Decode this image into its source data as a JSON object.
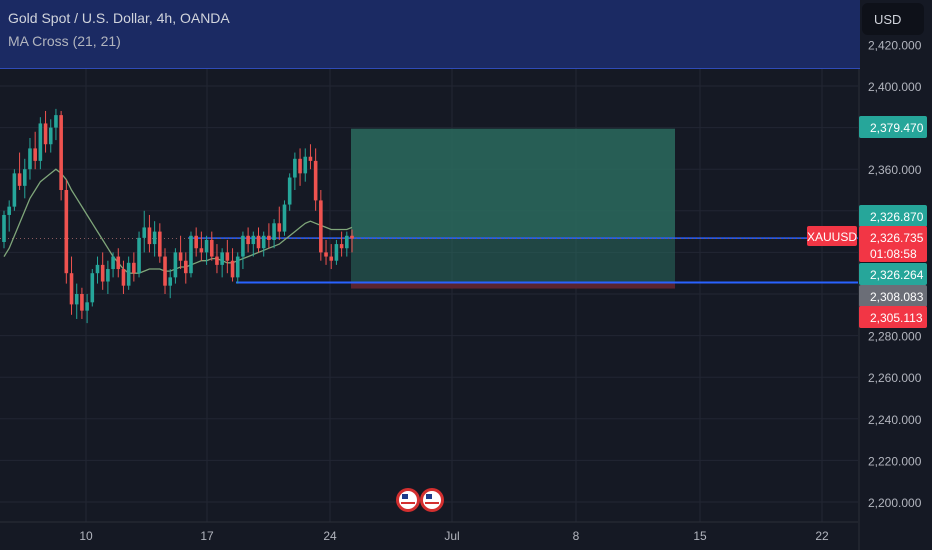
{
  "header": {
    "title": "Gold Spot / U.S. Dollar, 4h, OANDA",
    "indicator": "MA Cross (21, 21)",
    "currency": "USD"
  },
  "colors": {
    "background": "#151924",
    "up": "#26a69a",
    "down": "#ef5350",
    "profit_zone": "#2a6b5e",
    "loss_zone": "#5b2430",
    "level_line": "#2962ff",
    "ma_line": "#7fa67a"
  },
  "chart_data": {
    "type": "candlestick",
    "symbol": "XAUUSD",
    "ylim": [
      2190,
      2430
    ],
    "y_ticks": [
      "2,200.000",
      "2,220.000",
      "2,240.000",
      "2,260.000",
      "2,280.000",
      "2,300.000",
      "2,320.000",
      "2,340.000",
      "2,360.000",
      "2,380.000",
      "2,400.000",
      "2,420.000"
    ],
    "x_ticks": [
      "10",
      "17",
      "24",
      "Jul",
      "8",
      "15",
      "22"
    ],
    "price_labels": [
      {
        "value": "2,379.470",
        "kind": "target"
      },
      {
        "value": "2,326.870",
        "kind": "entry"
      },
      {
        "value": "2,326.735",
        "kind": "current",
        "symbol": "XAUUSD",
        "countdown": "01:08:58"
      },
      {
        "value": "2,326.264",
        "kind": "level"
      },
      {
        "value": "2,308.083",
        "kind": "stop_pending"
      },
      {
        "value": "2,305.113",
        "kind": "stop"
      }
    ],
    "position": {
      "entry": 2326.87,
      "target": 2379.47,
      "stop": 2305.113
    },
    "levels": [
      2326.87,
      2305.5
    ],
    "events": [
      "us-flag-event",
      "us-flag-event"
    ],
    "candles": [
      [
        2325,
        2340,
        2322,
        2338
      ],
      [
        2338,
        2345,
        2330,
        2342
      ],
      [
        2342,
        2360,
        2340,
        2358
      ],
      [
        2358,
        2368,
        2350,
        2352
      ],
      [
        2352,
        2365,
        2346,
        2360
      ],
      [
        2360,
        2375,
        2355,
        2370
      ],
      [
        2370,
        2378,
        2360,
        2364
      ],
      [
        2364,
        2385,
        2360,
        2382
      ],
      [
        2382,
        2388,
        2368,
        2372
      ],
      [
        2372,
        2384,
        2368,
        2380
      ],
      [
        2380,
        2389,
        2374,
        2386
      ],
      [
        2386,
        2388,
        2345,
        2350
      ],
      [
        2350,
        2355,
        2305,
        2310
      ],
      [
        2310,
        2318,
        2290,
        2295
      ],
      [
        2295,
        2305,
        2288,
        2300
      ],
      [
        2300,
        2303,
        2288,
        2292
      ],
      [
        2292,
        2300,
        2286,
        2296
      ],
      [
        2296,
        2312,
        2294,
        2310
      ],
      [
        2310,
        2318,
        2305,
        2314
      ],
      [
        2314,
        2320,
        2302,
        2306
      ],
      [
        2306,
        2316,
        2300,
        2312
      ],
      [
        2312,
        2320,
        2308,
        2318
      ],
      [
        2318,
        2322,
        2308,
        2312
      ],
      [
        2312,
        2316,
        2300,
        2304
      ],
      [
        2304,
        2318,
        2302,
        2315
      ],
      [
        2315,
        2320,
        2306,
        2310
      ],
      [
        2310,
        2330,
        2308,
        2327
      ],
      [
        2327,
        2340,
        2320,
        2332
      ],
      [
        2332,
        2338,
        2320,
        2324
      ],
      [
        2324,
        2335,
        2318,
        2330
      ],
      [
        2330,
        2334,
        2315,
        2318
      ],
      [
        2318,
        2322,
        2300,
        2304
      ],
      [
        2304,
        2312,
        2298,
        2308
      ],
      [
        2308,
        2322,
        2305,
        2320
      ],
      [
        2320,
        2328,
        2312,
        2316
      ],
      [
        2316,
        2320,
        2305,
        2310
      ],
      [
        2310,
        2330,
        2308,
        2328
      ],
      [
        2328,
        2332,
        2318,
        2322
      ],
      [
        2322,
        2330,
        2316,
        2320
      ],
      [
        2320,
        2328,
        2314,
        2326
      ],
      [
        2326,
        2330,
        2316,
        2318
      ],
      [
        2318,
        2324,
        2310,
        2314
      ],
      [
        2314,
        2322,
        2308,
        2320
      ],
      [
        2320,
        2326,
        2310,
        2316
      ],
      [
        2316,
        2322,
        2306,
        2308
      ],
      [
        2308,
        2320,
        2305,
        2318
      ],
      [
        2318,
        2330,
        2312,
        2328
      ],
      [
        2328,
        2332,
        2320,
        2324
      ],
      [
        2324,
        2330,
        2318,
        2328
      ],
      [
        2328,
        2332,
        2320,
        2322
      ],
      [
        2322,
        2330,
        2318,
        2328
      ],
      [
        2328,
        2334,
        2322,
        2326
      ],
      [
        2326,
        2336,
        2322,
        2334
      ],
      [
        2334,
        2342,
        2326,
        2330
      ],
      [
        2330,
        2345,
        2328,
        2343
      ],
      [
        2343,
        2358,
        2340,
        2356
      ],
      [
        2356,
        2368,
        2350,
        2365
      ],
      [
        2365,
        2370,
        2352,
        2358
      ],
      [
        2358,
        2370,
        2354,
        2366
      ],
      [
        2366,
        2372,
        2360,
        2364
      ],
      [
        2364,
        2370,
        2340,
        2345
      ],
      [
        2345,
        2350,
        2316,
        2320
      ],
      [
        2320,
        2326,
        2314,
        2318
      ],
      [
        2318,
        2324,
        2312,
        2316
      ],
      [
        2316,
        2326,
        2314,
        2324
      ],
      [
        2324,
        2330,
        2318,
        2322
      ],
      [
        2322,
        2330,
        2318,
        2328
      ],
      [
        2328,
        2331,
        2320,
        2326.7
      ]
    ],
    "ma_values": [
      2318,
      2322,
      2328,
      2334,
      2340,
      2346,
      2350,
      2354,
      2356,
      2358,
      2360,
      2358,
      2355,
      2350,
      2346,
      2342,
      2338,
      2334,
      2330,
      2326,
      2322,
      2318,
      2315,
      2312,
      2310,
      2310,
      2310,
      2311,
      2312,
      2312,
      2312,
      2311,
      2311,
      2312,
      2313,
      2313,
      2314,
      2315,
      2316,
      2316,
      2317,
      2317,
      2316,
      2315,
      2315,
      2316,
      2317,
      2318,
      2319,
      2320,
      2321,
      2322,
      2323,
      2324,
      2326,
      2328,
      2330,
      2332,
      2334,
      2335,
      2334,
      2333,
      2332,
      2331,
      2331,
      2331,
      2331,
      2332
    ]
  }
}
